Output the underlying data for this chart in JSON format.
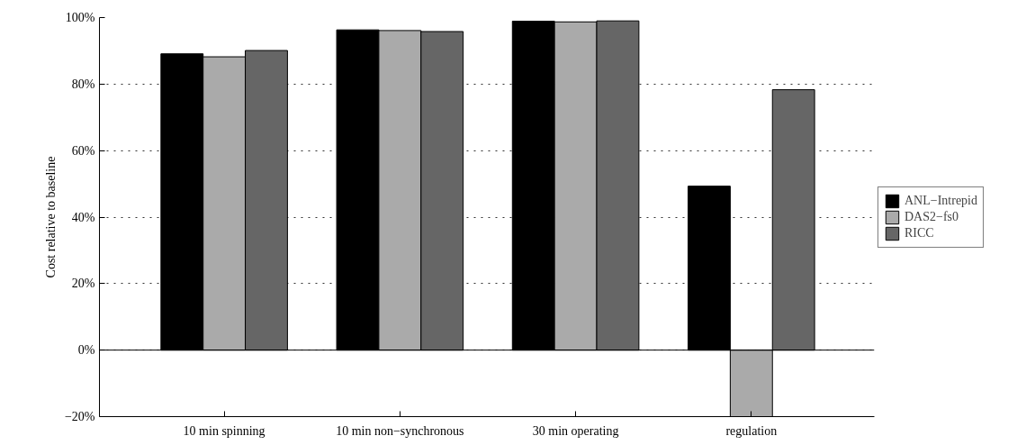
{
  "chart_data": {
    "type": "bar",
    "ylabel": "Cost relative to baseline",
    "categories": [
      "10 min spinning",
      "10 min non−synchronous",
      "30 min operating",
      "regulation"
    ],
    "series": [
      {
        "name": "ANL−Intrepid",
        "color": "#000000",
        "values": [
          89.1,
          96.3,
          98.9,
          49.3
        ]
      },
      {
        "name": "DAS2−fs0",
        "color": "#aaaaaa",
        "values": [
          88.2,
          96.1,
          98.7,
          -20
        ]
      },
      {
        "name": "RICC",
        "color": "#666666",
        "values": [
          90.1,
          95.8,
          99.0,
          78.3
        ]
      }
    ],
    "ylim": [
      -20,
      100
    ],
    "yticks": [
      {
        "value": -20,
        "label": "−20%"
      },
      {
        "value": 0,
        "label": "0%"
      },
      {
        "value": 20,
        "label": "20%"
      },
      {
        "value": 40,
        "label": "40%"
      },
      {
        "value": 60,
        "label": "60%"
      },
      {
        "value": 80,
        "label": "80%"
      },
      {
        "value": 100,
        "label": "100%"
      }
    ],
    "ref_lines": [
      {
        "axis": "y",
        "value": 0,
        "label": null,
        "color": "#000000"
      }
    ],
    "grid": "y",
    "legend": "right"
  }
}
